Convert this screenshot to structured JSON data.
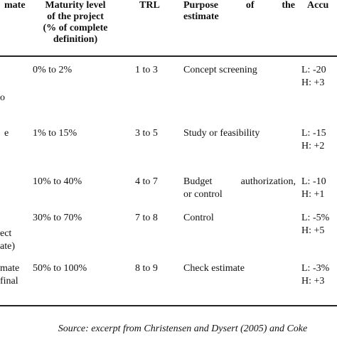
{
  "table": {
    "headers": {
      "estimate_cut": "mate",
      "maturity_line1": "Maturity level",
      "maturity_line2": "of the project",
      "maturity_line3": "(% of complete",
      "maturity_line4": "definition)",
      "trl": "TRL",
      "purpose_line1_a": "Purpose",
      "purpose_line1_b": "of",
      "purpose_line1_c": "the",
      "purpose_line2": "estimate",
      "accuracy_cut": "Accu"
    },
    "rows": [
      {
        "left_fragments": [
          "",
          "o"
        ],
        "maturity": "0% to 2%",
        "trl": "1 to 3",
        "purpose": [
          "Concept screening"
        ],
        "accuracy": [
          "L: -20",
          "H: +3"
        ]
      },
      {
        "left_fragments": [
          "e"
        ],
        "maturity": "1% to 15%",
        "trl": "3 to 5",
        "purpose": [
          "Study or feasibility"
        ],
        "accuracy": [
          "L: -15",
          "H: +2"
        ]
      },
      {
        "left_fragments": [],
        "maturity": "10% to 40%",
        "trl": "4 to 7",
        "purpose_justified": "Budget authorization,",
        "purpose": [
          "or control"
        ],
        "accuracy": [
          "L: -10",
          "H: +1"
        ]
      },
      {
        "left_fragments": [
          "ect",
          "ate)"
        ],
        "maturity": "30% to 70%",
        "trl": "7 to 8",
        "purpose": [
          "Control"
        ],
        "accuracy": [
          "L: -5%",
          "H: +5"
        ]
      },
      {
        "left_fragments": [
          "mate",
          "final"
        ],
        "maturity": "50% to 100%",
        "trl": "8 to 9",
        "purpose": [
          "Check estimate"
        ],
        "accuracy": [
          "L: -3%",
          "H: +3"
        ]
      }
    ]
  },
  "source": "Source: excerpt from Christensen and Dysert (2005) and Coke"
}
